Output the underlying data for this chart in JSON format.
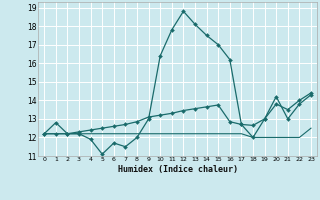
{
  "xlabel": "Humidex (Indice chaleur)",
  "x_values": [
    0,
    1,
    2,
    3,
    4,
    5,
    6,
    7,
    8,
    9,
    10,
    11,
    12,
    13,
    14,
    15,
    16,
    17,
    18,
    19,
    20,
    21,
    22,
    23
  ],
  "line1": [
    12.2,
    12.8,
    12.2,
    12.2,
    11.9,
    11.1,
    11.7,
    11.5,
    12.0,
    13.0,
    16.4,
    17.8,
    18.8,
    18.1,
    17.5,
    17.0,
    16.2,
    12.7,
    12.65,
    13.0,
    14.2,
    13.0,
    13.8,
    14.3
  ],
  "line2": [
    12.2,
    12.2,
    12.2,
    12.2,
    12.2,
    12.2,
    12.2,
    12.2,
    12.2,
    12.2,
    12.2,
    12.2,
    12.2,
    12.2,
    12.2,
    12.2,
    12.2,
    12.2,
    12.0,
    12.0,
    12.0,
    12.0,
    12.0,
    12.5
  ],
  "line3": [
    12.2,
    12.2,
    12.2,
    12.3,
    12.4,
    12.5,
    12.6,
    12.7,
    12.85,
    13.1,
    13.2,
    13.3,
    13.45,
    13.55,
    13.65,
    13.75,
    12.85,
    12.7,
    12.0,
    13.0,
    13.8,
    13.5,
    14.0,
    14.4
  ],
  "bg_color": "#cce9ee",
  "grid_color": "#b0d8e0",
  "line_color": "#1a6b6b",
  "ylim": [
    11.0,
    19.3
  ],
  "yticks": [
    11,
    12,
    13,
    14,
    15,
    16,
    17,
    18,
    19
  ],
  "xticks": [
    0,
    1,
    2,
    3,
    4,
    5,
    6,
    7,
    8,
    9,
    10,
    11,
    12,
    13,
    14,
    15,
    16,
    17,
    18,
    19,
    20,
    21,
    22,
    23
  ],
  "figsize": [
    3.2,
    2.0
  ],
  "dpi": 100
}
